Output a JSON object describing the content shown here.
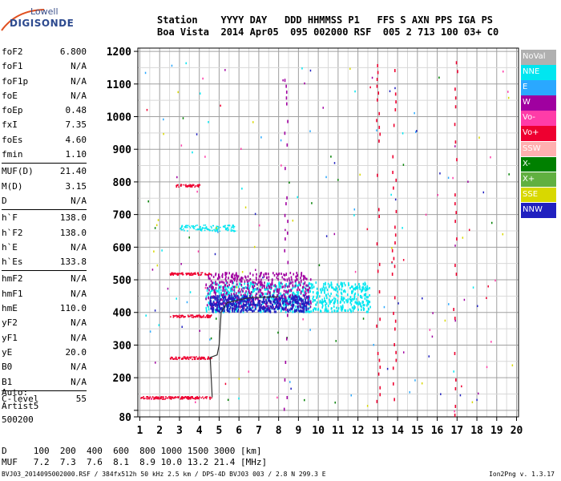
{
  "logo": {
    "top": "Lowell",
    "main": "DIGISONDE"
  },
  "header": {
    "line1": "Station    YYYY DAY   DDD HHMMSS P1   FFS S AXN PPS IGA PS",
    "line2": "Boa Vista  2014 Apr05  095 002000 RSF  005 2 713 100 03+ C0"
  },
  "params": [
    {
      "label": "foF2",
      "value": "6.800"
    },
    {
      "label": "foF1",
      "value": "N/A"
    },
    {
      "label": "foF1p",
      "value": "N/A"
    },
    {
      "label": "foE",
      "value": "N/A"
    },
    {
      "label": "foEp",
      "value": "0.48"
    },
    {
      "label": "fxI",
      "value": "7.35"
    },
    {
      "label": "foEs",
      "value": "4.60"
    },
    {
      "label": "fmin",
      "value": "1.10"
    },
    {
      "sep": true
    },
    {
      "label": "MUF(D)",
      "value": "21.40"
    },
    {
      "label": "M(D)",
      "value": "3.15"
    },
    {
      "label": "D",
      "value": "N/A"
    },
    {
      "sep": true
    },
    {
      "label": "h`F",
      "value": "138.0"
    },
    {
      "label": "h`F2",
      "value": "138.0"
    },
    {
      "label": "h`E",
      "value": "N/A"
    },
    {
      "label": "h`Es",
      "value": "133.8"
    },
    {
      "sep": true
    },
    {
      "label": "hmF2",
      "value": "N/A"
    },
    {
      "label": "hmF1",
      "value": "N/A"
    },
    {
      "label": "hmE",
      "value": "110.0"
    },
    {
      "label": "yF2",
      "value": "N/A"
    },
    {
      "label": "yF1",
      "value": "N/A"
    },
    {
      "label": "yE",
      "value": "20.0"
    },
    {
      "label": "B0",
      "value": "N/A"
    },
    {
      "label": "B1",
      "value": "N/A"
    },
    {
      "sep": true
    },
    {
      "label": "C-level",
      "value": "55"
    }
  ],
  "auto": {
    "line1": "Auto:",
    "line2": "Artist5",
    "line3": "500200"
  },
  "muf_table": {
    "d_line": "D     100  200  400  600  800 1000 1500 3000 [km]",
    "muf_line": "MUF   7.2  7.3  7.6  8.1  8.9 10.0 13.2 21.4 [MHz]"
  },
  "footer": {
    "left": "BVJ03_2014095002000.RSF / 384fx512h 50 kHz 2.5 km / DPS-4D BVJ03 003 / 2.8 N 299.3 E",
    "right": "Ion2Png v. 1.3.17"
  },
  "legend": [
    {
      "label": "NoVal",
      "color": "#b0b0b0"
    },
    {
      "label": "NNE",
      "color": "#00e6f0"
    },
    {
      "label": "E",
      "color": "#2aa8ff"
    },
    {
      "label": "W",
      "color": "#a000a0"
    },
    {
      "label": "Vo-",
      "color": "#ff3ca8"
    },
    {
      "label": "Vo+",
      "color": "#ee0030"
    },
    {
      "label": "SSW",
      "color": "#ffb0b0"
    },
    {
      "label": "X-",
      "color": "#008000"
    },
    {
      "label": "X+",
      "color": "#60b040"
    },
    {
      "label": "SSE",
      "color": "#d8d800"
    },
    {
      "label": "NNW",
      "color": "#2020c0"
    }
  ],
  "chart_data": {
    "type": "scatter",
    "xlabel": "",
    "ylabel": "",
    "xlim": [
      0.9,
      20.1
    ],
    "ylim": [
      80,
      1210
    ],
    "x_ticks": [
      1,
      2,
      3,
      4,
      5,
      6,
      7,
      8,
      9,
      10,
      11,
      12,
      13,
      14,
      15,
      16,
      17,
      18,
      19,
      20
    ],
    "y_ticks": [
      80,
      100,
      200,
      300,
      400,
      500,
      600,
      700,
      800,
      900,
      1000,
      1100,
      1200
    ],
    "y_tick_labels": [
      "80",
      "",
      "200",
      "300",
      "400",
      "500",
      "600",
      "700",
      "800",
      "900",
      "1000",
      "1100",
      "1200"
    ],
    "grid": true,
    "traces": [
      {
        "name": "Vo+",
        "x0": 1.0,
        "x1": 4.6,
        "y": 140,
        "spread": 4
      },
      {
        "name": "Vo+",
        "x0": 2.5,
        "x1": 4.6,
        "y": 262,
        "spread": 4
      },
      {
        "name": "Vo+",
        "x0": 2.5,
        "x1": 4.6,
        "y": 390,
        "spread": 4
      },
      {
        "name": "Vo+",
        "x0": 2.5,
        "x1": 4.6,
        "y": 520,
        "spread": 4
      },
      {
        "name": "Vo+",
        "x0": 2.8,
        "x1": 4.0,
        "y": 790,
        "spread": 4
      },
      {
        "name": "NNE",
        "x0": 4.3,
        "x1": 12.6,
        "y": 450,
        "spread": 45
      },
      {
        "name": "NNE",
        "x0": 3.0,
        "x1": 5.8,
        "y": 660,
        "spread": 10
      },
      {
        "name": "W",
        "x0": 4.3,
        "x1": 9.6,
        "y": 470,
        "spread": 55
      },
      {
        "name": "NNW",
        "x0": 4.5,
        "x1": 9.5,
        "y": 430,
        "spread": 25
      }
    ],
    "profile_curve": [
      [
        4.65,
        140
      ],
      [
        4.6,
        200
      ],
      [
        4.55,
        262
      ],
      [
        4.9,
        270
      ],
      [
        5.0,
        300
      ],
      [
        5.1,
        400
      ],
      [
        5.4,
        430
      ],
      [
        6.5,
        445
      ],
      [
        8.0,
        448
      ]
    ]
  }
}
